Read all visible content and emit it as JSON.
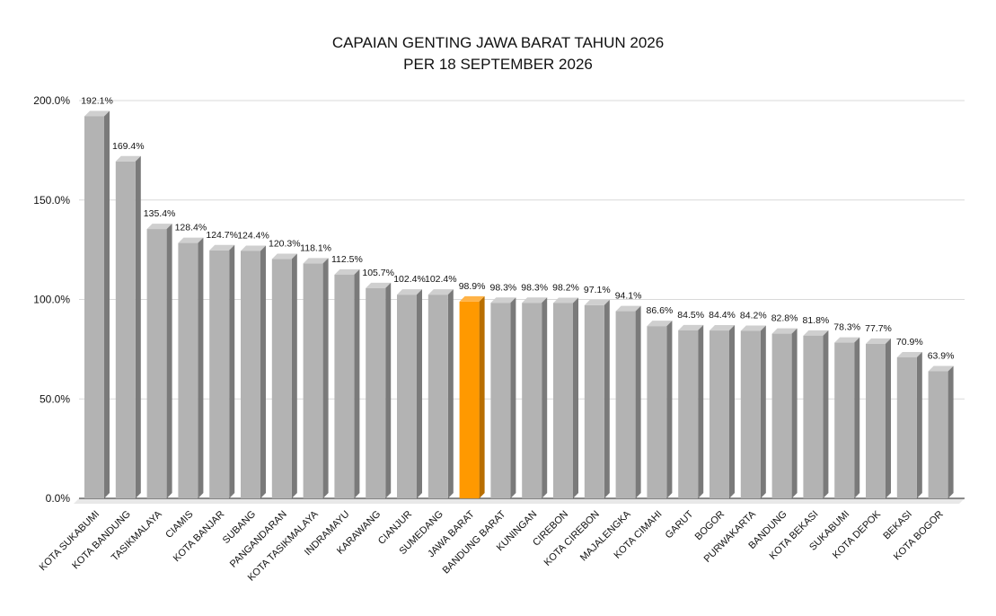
{
  "chart_data": {
    "type": "bar",
    "title": "CAPAIAN GENTING JAWA BARAT TAHUN 2026",
    "subtitle": "PER 18 SEPTEMBER 2026",
    "xlabel": "",
    "ylabel": "",
    "ylim": [
      0,
      200
    ],
    "yticks": [
      "0.0%",
      "50.0%",
      "100.0%",
      "150.0%",
      "200.0%"
    ],
    "grid": true,
    "legend": "none",
    "bar_color": "#b3b3b3",
    "highlight_color": "#ff9900",
    "highlight_category": "JAWA BARAT",
    "categories": [
      "KOTA SUKABUMI",
      "KOTA BANDUNG",
      "TASIKMALAYA",
      "CIAMIS",
      "KOTA BANJAR",
      "SUBANG",
      "PANGANDARAN",
      "KOTA TASIKMALAYA",
      "INDRAMAYU",
      "KARAWANG",
      "CIANJUR",
      "SUMEDANG",
      "JAWA BARAT",
      "BANDUNG BARAT",
      "KUNINGAN",
      "CIREBON",
      "KOTA CIREBON",
      "MAJALENGKA",
      "KOTA CIMAHI",
      "GARUT",
      "BOGOR",
      "PURWAKARTA",
      "BANDUNG",
      "KOTA BEKASI",
      "SUKABUMI",
      "KOTA DEPOK",
      "BEKASI",
      "KOTA BOGOR"
    ],
    "values": [
      192.1,
      169.4,
      135.4,
      128.4,
      124.7,
      124.4,
      120.3,
      118.1,
      112.5,
      105.7,
      102.4,
      102.4,
      98.9,
      98.3,
      98.3,
      98.2,
      97.1,
      94.1,
      86.6,
      84.5,
      84.4,
      84.2,
      82.8,
      81.8,
      78.3,
      77.7,
      70.9,
      63.9
    ],
    "data_labels": [
      "192.1%",
      "169.4%",
      "135.4%",
      "128.4%",
      "124.7%",
      "124.4%",
      "120.3%",
      "118.1%",
      "112.5%",
      "105.7%",
      "102.4%",
      "102.4%",
      "98.9%",
      "98.3%",
      "98.3%",
      "98.2%",
      "97.1%",
      "94.1%",
      "86.6%",
      "84.5%",
      "84.4%",
      "84.2%",
      "82.8%",
      "81.8%",
      "78.3%",
      "77.7%",
      "70.9%",
      "63.9%"
    ]
  }
}
